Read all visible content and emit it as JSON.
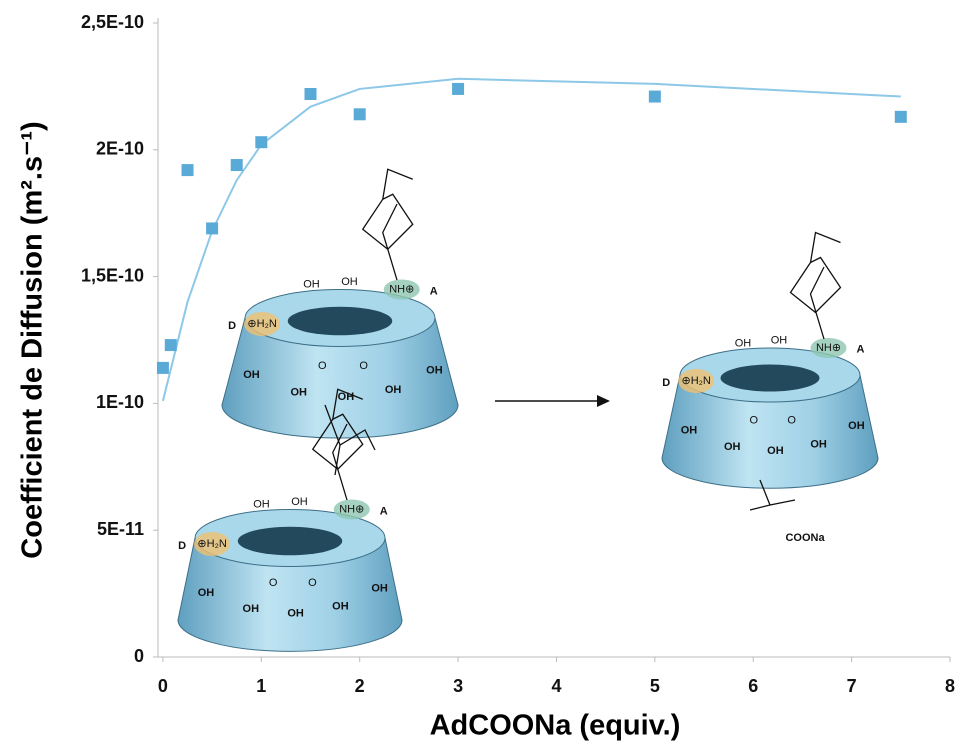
{
  "chart_data": {
    "type": "scatter",
    "xlabel": "AdCOONa (equiv.)",
    "ylabel": "Coefficient de Diffusion (m².s⁻¹)",
    "xlim": [
      -0.05,
      8
    ],
    "ylim": [
      0,
      2.5e-10
    ],
    "xticks": [
      0,
      1,
      2,
      3,
      4,
      5,
      6,
      7,
      8
    ],
    "yticks": [
      0,
      {
        "value": 5e-11,
        "label": "5E-11"
      },
      {
        "value": 1e-10,
        "label": "1E-10"
      },
      {
        "value": 1.5e-10,
        "label": "1,5E-10"
      },
      {
        "value": 2e-10,
        "label": "2E-10"
      },
      {
        "value": 2.5e-10,
        "label": "2,5E-10"
      }
    ],
    "series": [
      {
        "style": "marker",
        "color": "#5aaad8",
        "x": [
          0,
          0.08,
          0.25,
          0.5,
          0.75,
          1,
          1.5,
          2,
          3,
          5,
          7.5
        ],
        "values": [
          1.14e-10,
          1.23e-10,
          1.92e-10,
          1.69e-10,
          1.94e-10,
          2.03e-10,
          2.22e-10,
          2.14e-10,
          2.24e-10,
          2.21e-10,
          2.13e-10
        ]
      },
      {
        "style": "line",
        "color": "#8dc8e8",
        "x": [
          0,
          0.25,
          0.5,
          0.75,
          1,
          1.5,
          2,
          3,
          5,
          7.5
        ],
        "values": [
          1.01e-10,
          1.4e-10,
          1.68e-10,
          1.88e-10,
          2.02e-10,
          2.17e-10,
          2.24e-10,
          2.28e-10,
          2.26e-10,
          2.21e-10
        ]
      }
    ]
  },
  "diagram_labels": [
    "D",
    "A",
    "NH⊕",
    "⊕H₂N",
    "OH",
    "O",
    "COONa"
  ]
}
